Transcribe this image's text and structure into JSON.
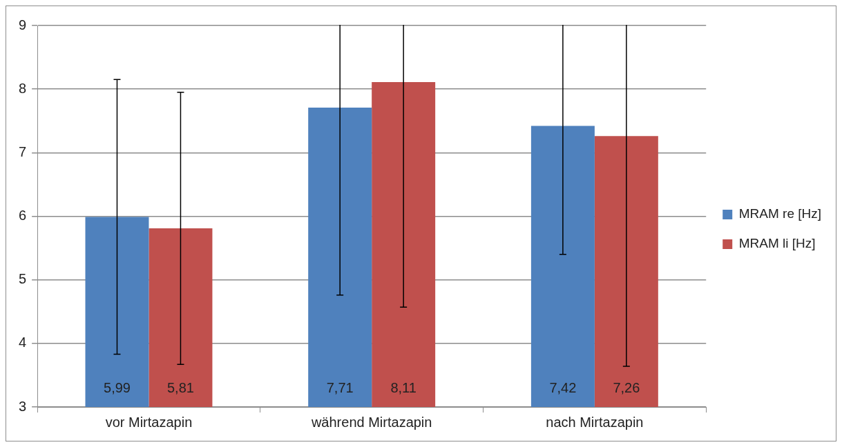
{
  "chart_data": {
    "type": "bar",
    "categories": [
      "vor Mirtazapin",
      "während Mirtazapin",
      "nach Mirtazapin"
    ],
    "series": [
      {
        "name": "MRAM re [Hz]",
        "color": "#4f81bd",
        "values": [
          5.99,
          7.71,
          7.42
        ],
        "value_labels": [
          "5,99",
          "7,71",
          "7,42"
        ],
        "errors": [
          2.16,
          2.95,
          2.02
        ]
      },
      {
        "name": "MRAM li [Hz]",
        "color": "#c0504d",
        "values": [
          5.81,
          8.11,
          7.26
        ],
        "value_labels": [
          "5,81",
          "8,11",
          "7,26"
        ],
        "errors": [
          2.14,
          3.54,
          3.62
        ]
      }
    ],
    "ylim": [
      3,
      9
    ],
    "yticks": [
      3,
      4,
      5,
      6,
      7,
      8,
      9
    ],
    "grid": "y",
    "legend": "right"
  }
}
